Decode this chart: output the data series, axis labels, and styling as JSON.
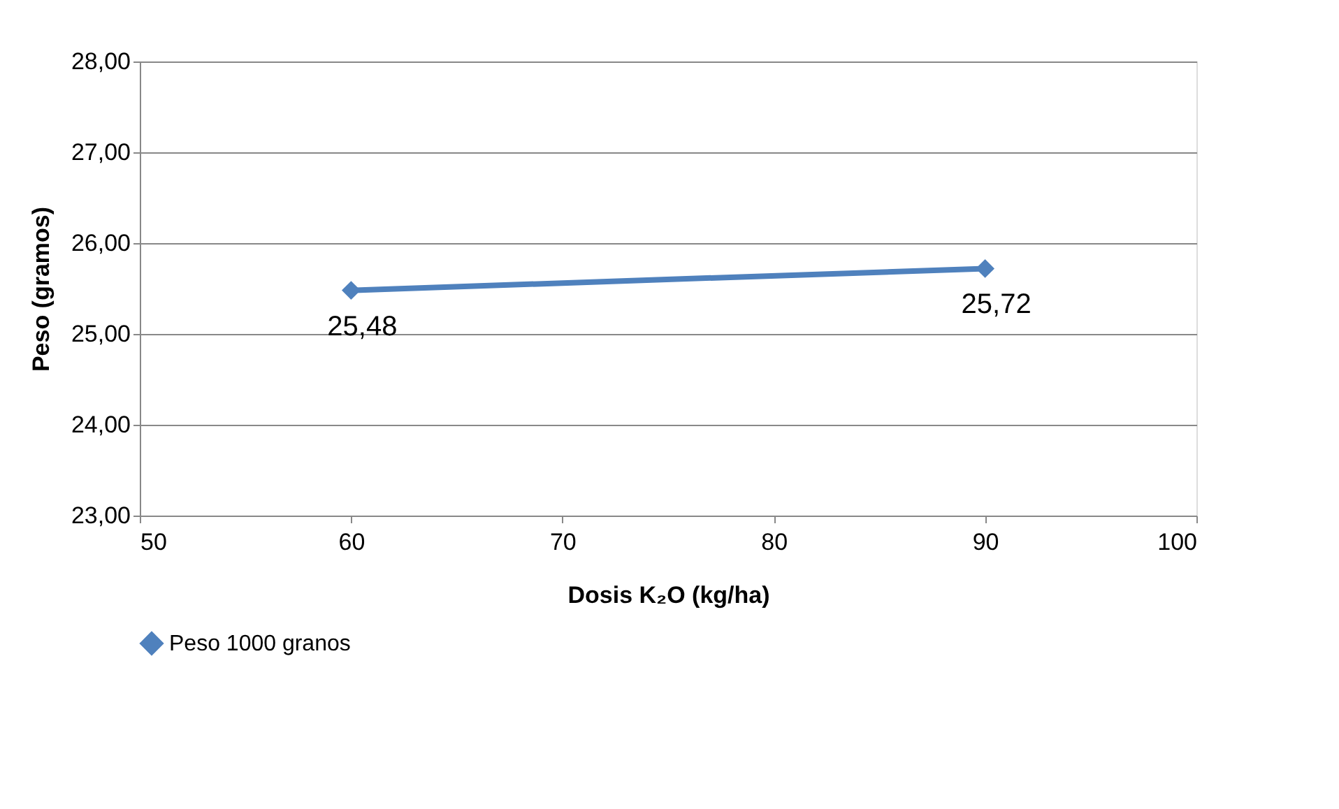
{
  "chart_data": {
    "type": "line",
    "xlabel": "Dosis K₂O (kg/ha)",
    "ylabel": "Peso (gramos)",
    "x": [
      60,
      90
    ],
    "series": [
      {
        "name": "Peso 1000 granos",
        "color": "#4f81bd",
        "values": [
          25.48,
          25.72
        ],
        "value_labels": [
          "25,48",
          "25,72"
        ]
      }
    ],
    "xlim": [
      50,
      100
    ],
    "xticks": [
      50,
      60,
      70,
      80,
      90,
      100
    ],
    "ylim": [
      23,
      28
    ],
    "yticks": [
      {
        "value": 23,
        "label": "23,00"
      },
      {
        "value": 24,
        "label": "24,00"
      },
      {
        "value": 25,
        "label": "25,00"
      },
      {
        "value": 26,
        "label": "26,00"
      },
      {
        "value": 27,
        "label": "27,00"
      },
      {
        "value": 28,
        "label": "28,00"
      }
    ],
    "grid": "y",
    "legend": "bottom",
    "marker": "diamond",
    "line_style": "solid"
  }
}
